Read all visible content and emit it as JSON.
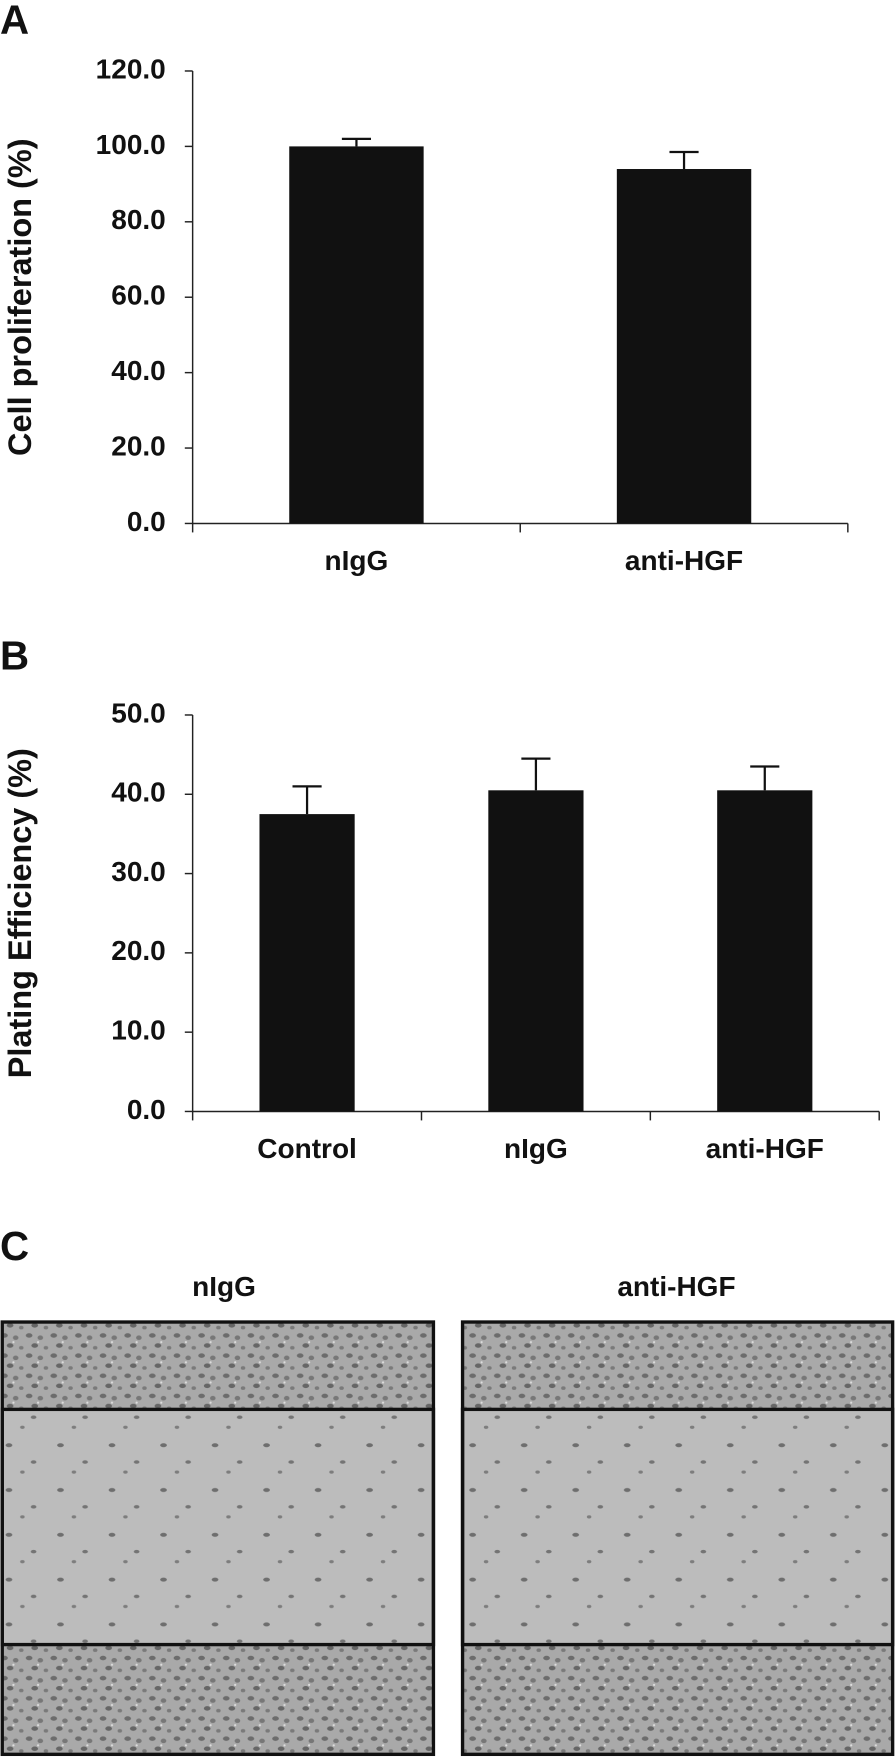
{
  "chart_data": [
    {
      "type": "bar",
      "panel_label": "A",
      "y_label": "Cell proliferation (%)",
      "categories": [
        "nIgG",
        "anti-HGF"
      ],
      "values": [
        100,
        94
      ],
      "errors": [
        2,
        4.5
      ],
      "color": "#111111",
      "ylim": [
        0,
        120
      ],
      "yticks": [
        {
          "value": 0,
          "label": "0.0"
        },
        {
          "value": 20,
          "label": "20.0"
        },
        {
          "value": 40,
          "label": "40.0"
        },
        {
          "value": 60,
          "label": "60.0"
        },
        {
          "value": 80,
          "label": "80.0"
        },
        {
          "value": 100,
          "label": "100.0"
        },
        {
          "value": 120,
          "label": "120.0"
        }
      ]
    },
    {
      "type": "bar",
      "panel_label": "B",
      "y_label": "Plating Efficiency (%)",
      "categories": [
        "Control",
        "nIgG",
        "anti-HGF"
      ],
      "values": [
        37.5,
        40.5,
        40.5
      ],
      "errors": [
        3.5,
        4,
        3
      ],
      "color": "#111111",
      "ylim": [
        0,
        50
      ],
      "yticks": [
        {
          "value": 0,
          "label": "0.0"
        },
        {
          "value": 10,
          "label": "10.0"
        },
        {
          "value": 20,
          "label": "20.0"
        },
        {
          "value": 30,
          "label": "30.0"
        },
        {
          "value": 40,
          "label": "40.0"
        },
        {
          "value": 50,
          "label": "50.0"
        }
      ]
    }
  ],
  "panel_c": {
    "panel_label": "C",
    "images": [
      "nIgG",
      "anti-HGF"
    ]
  }
}
